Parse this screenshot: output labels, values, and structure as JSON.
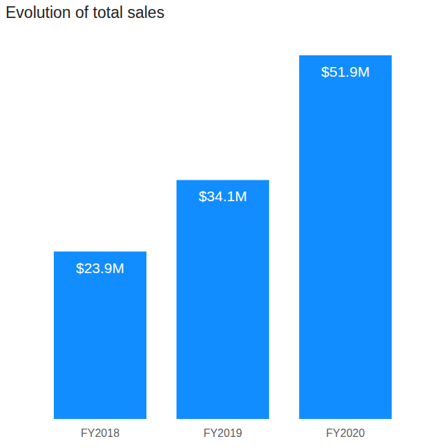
{
  "chart_data": {
    "type": "bar",
    "title": "Evolution of total sales",
    "categories": [
      "FY2018",
      "FY2019",
      "FY2020"
    ],
    "values": [
      23.9,
      34.1,
      51.9
    ],
    "value_labels": [
      "$23.9M",
      "$34.1M",
      "$51.9M"
    ],
    "color": "#118dff",
    "ylim": [
      0,
      51.9
    ],
    "data_labels": true,
    "tick_labels": "x",
    "grid": false
  }
}
